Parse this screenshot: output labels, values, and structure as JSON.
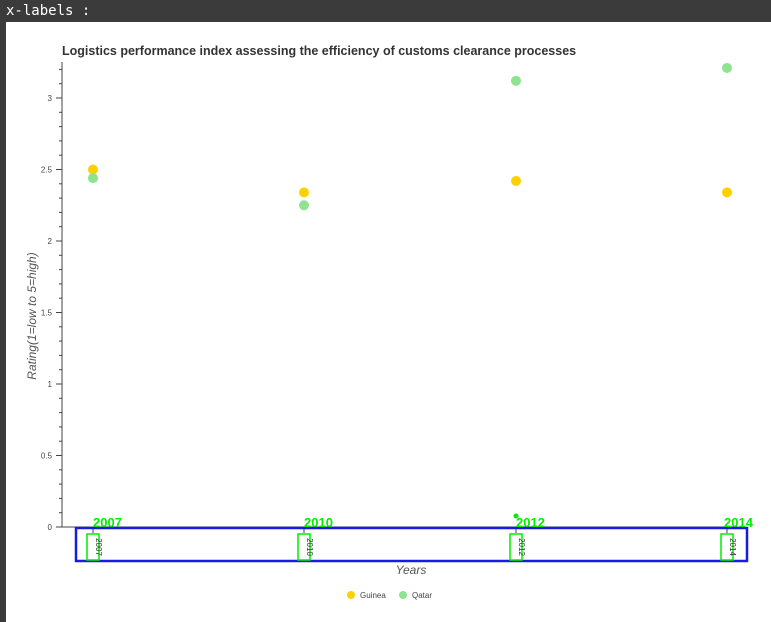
{
  "header": {
    "label": "x-labels :"
  },
  "chart_data": {
    "type": "scatter",
    "title": "Logistics performance index assessing the efficiency of customs clearance processes",
    "xlabel": "Years",
    "ylabel": "Rating(1=low to 5=high)",
    "categories": [
      "2007",
      "2010",
      "2012",
      "2014"
    ],
    "yticks": [
      "0",
      "0.5",
      "1",
      "1.5",
      "2",
      "2.5",
      "3"
    ],
    "ylim": [
      0,
      3.25
    ],
    "series": [
      {
        "name": "Guinea",
        "color": "#FFD000",
        "values": [
          2.5,
          2.34,
          2.42,
          2.34
        ]
      },
      {
        "name": "Qatar",
        "color": "#8FE38F",
        "values": [
          2.44,
          2.25,
          3.12,
          3.21
        ]
      }
    ],
    "legend": "bottom-center",
    "grid": false
  },
  "annotation": {
    "labels": [
      "2007",
      "2010",
      "2012",
      "2014"
    ],
    "color": "#00EE00",
    "box_color": "#1A1AE6"
  }
}
